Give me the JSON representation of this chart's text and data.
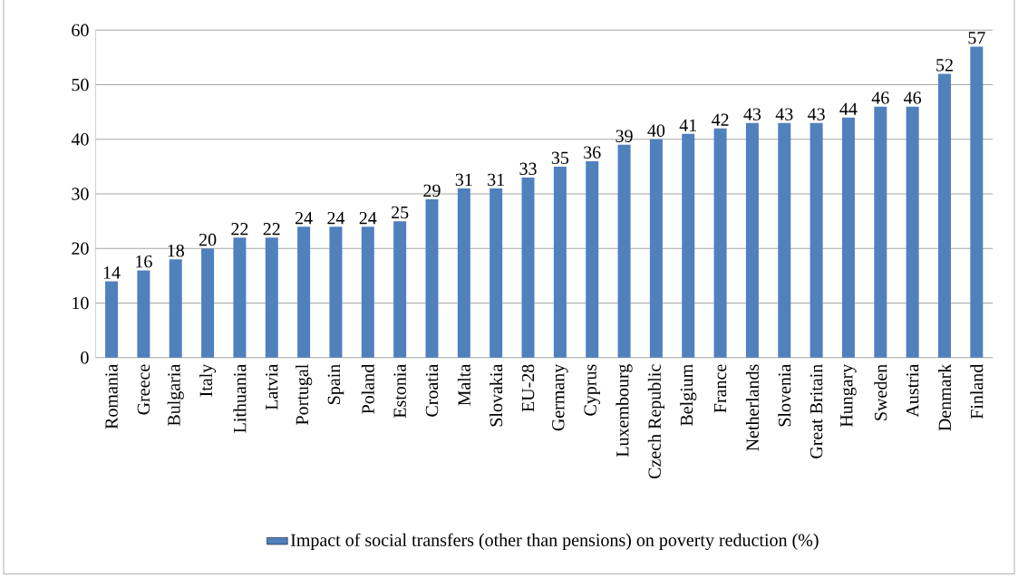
{
  "chart_data": {
    "type": "bar",
    "categories": [
      "Romania",
      "Greece",
      "Bulgaria",
      "Italy",
      "Lithuania",
      "Latvia",
      "Portugal",
      "Spain",
      "Poland",
      "Estonia",
      "Croatia",
      "Malta",
      "Slovakia",
      "EU-28",
      "Germany",
      "Cyprus",
      "Luxembourg",
      "Czech Republic",
      "Belgium",
      "France",
      "Netherlands",
      "Slovenia",
      "Great Britain",
      "Hungary",
      "Sweden",
      "Austria",
      "Denmark",
      "Finland"
    ],
    "series": [
      {
        "name": "Impact of social transfers (other than pensions) on poverty reduction (%)",
        "color": "#4f81bd",
        "values": [
          14,
          16,
          18,
          20,
          22,
          22,
          24,
          24,
          24,
          25,
          29,
          31,
          31,
          33,
          35,
          36,
          39,
          40,
          41,
          42,
          43,
          43,
          43,
          44,
          46,
          46,
          52,
          57
        ]
      }
    ],
    "ylim": [
      0,
      60
    ],
    "yticks": [
      0,
      10,
      20,
      30,
      40,
      50,
      60
    ],
    "grid": "y",
    "legend": "bottom",
    "data_labels": true
  }
}
